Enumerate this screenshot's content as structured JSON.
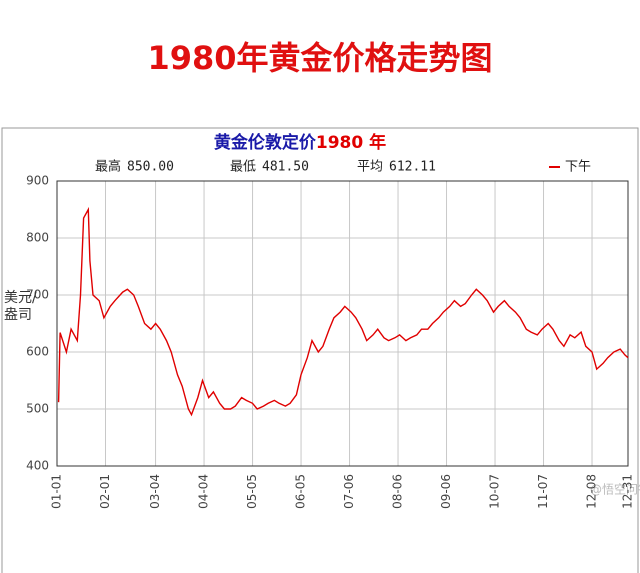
{
  "page_title": "1980年黄金价格走势图",
  "watermark": "@悟空问答",
  "chart_data": {
    "type": "line",
    "title_parts": [
      {
        "text": "黄金伦敦定价",
        "color": "#1a1aa8"
      },
      {
        "text": "1980 年",
        "color": "#e00000"
      }
    ],
    "stats": [
      {
        "label": "最高",
        "value": "850.00"
      },
      {
        "label": "最低",
        "value": "481.50"
      },
      {
        "label": "平均",
        "value": "612.11"
      }
    ],
    "ylabel": "美元/盎司",
    "ylim": [
      400,
      900
    ],
    "yticks": [
      400,
      500,
      600,
      700,
      800,
      900
    ],
    "xlim": [
      "01-01",
      "12-31"
    ],
    "xticks": [
      "01-01",
      "02-01",
      "03-04",
      "04-04",
      "05-05",
      "06-05",
      "07-06",
      "08-06",
      "09-06",
      "10-07",
      "11-07",
      "12-08",
      "12-31"
    ],
    "grid": true,
    "legend": "top-right",
    "x": [
      "01-02",
      "01-03",
      "01-07",
      "01-10",
      "01-14",
      "01-16",
      "01-18",
      "01-21",
      "01-22",
      "01-24",
      "01-28",
      "01-31",
      "02-04",
      "02-07",
      "02-12",
      "02-15",
      "02-19",
      "02-22",
      "02-26",
      "03-01",
      "03-04",
      "03-07",
      "03-11",
      "03-14",
      "03-18",
      "03-21",
      "03-25",
      "03-27",
      "03-31",
      "04-03",
      "04-07",
      "04-10",
      "04-14",
      "04-17",
      "04-21",
      "04-24",
      "04-28",
      "05-01",
      "05-05",
      "05-08",
      "05-12",
      "05-15",
      "05-19",
      "05-22",
      "05-26",
      "05-29",
      "06-02",
      "06-05",
      "06-09",
      "06-12",
      "06-16",
      "06-19",
      "06-23",
      "06-26",
      "06-30",
      "07-03",
      "07-07",
      "07-10",
      "07-14",
      "07-17",
      "07-21",
      "07-24",
      "07-28",
      "07-31",
      "08-04",
      "08-07",
      "08-11",
      "08-14",
      "08-18",
      "08-21",
      "08-25",
      "08-28",
      "09-01",
      "09-04",
      "09-08",
      "09-11",
      "09-15",
      "09-18",
      "09-22",
      "09-25",
      "09-29",
      "10-02",
      "10-06",
      "10-09",
      "10-13",
      "10-16",
      "10-20",
      "10-23",
      "10-27",
      "10-30",
      "11-03",
      "11-06",
      "11-10",
      "11-13",
      "11-17",
      "11-20",
      "11-24",
      "11-27",
      "12-01",
      "12-04",
      "12-08",
      "12-11",
      "12-15",
      "12-18",
      "12-22",
      "12-26",
      "12-29",
      "12-31"
    ],
    "series": [
      {
        "name": "下午",
        "color": "#e00000",
        "values": [
          512,
          634,
          600,
          640,
          620,
          700,
          835,
          850,
          760,
          700,
          690,
          660,
          680,
          690,
          705,
          710,
          700,
          680,
          650,
          640,
          650,
          640,
          620,
          600,
          560,
          540,
          500,
          490,
          520,
          550,
          520,
          530,
          510,
          500,
          500,
          505,
          520,
          515,
          510,
          500,
          505,
          510,
          515,
          510,
          505,
          510,
          525,
          560,
          590,
          620,
          600,
          610,
          640,
          660,
          670,
          680,
          670,
          660,
          640,
          620,
          630,
          640,
          625,
          620,
          625,
          630,
          620,
          625,
          630,
          640,
          640,
          650,
          660,
          670,
          680,
          690,
          680,
          685,
          700,
          710,
          700,
          690,
          670,
          680,
          690,
          680,
          670,
          660,
          640,
          635,
          630,
          640,
          650,
          640,
          620,
          610,
          630,
          625,
          635,
          610,
          600,
          570,
          580,
          590,
          600,
          605,
          595,
          590
        ]
      }
    ]
  }
}
